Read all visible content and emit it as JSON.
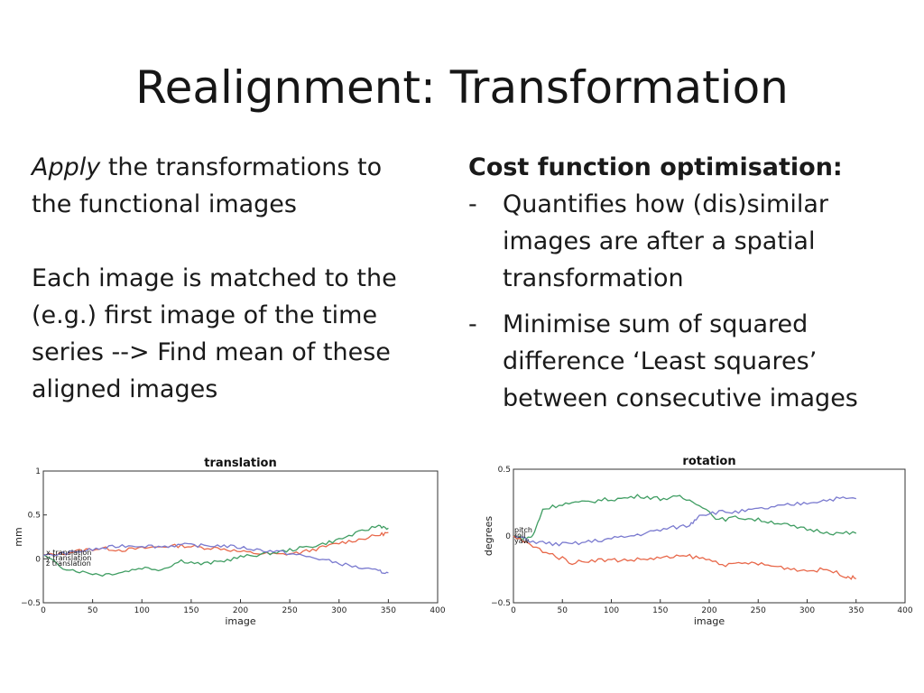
{
  "slide": {
    "title": "Realignment: Transformation"
  },
  "left": {
    "p1_em": "Apply",
    "p1_rest_line1": " the transformations to",
    "p1_line2": "the functional images",
    "p2_lines": [
      "Each image is matched to the",
      "(e.g.) first image of the time",
      "series --> Find mean of these",
      "aligned images"
    ]
  },
  "right": {
    "heading": "Cost function optimisation:",
    "bullets": [
      {
        "dash": "-",
        "lines": [
          "Quantifies how (dis)similar",
          "images are after a spatial",
          "transformation"
        ]
      },
      {
        "dash": "-",
        "lines": [
          "Minimise sum of squared",
          "difference ‘Least squares’",
          "between consecutive images"
        ]
      }
    ]
  },
  "colors": {
    "x": "#e8684a",
    "y": "#3f9d62",
    "z": "#7a7acf"
  },
  "chart_data": [
    {
      "type": "line",
      "title": "translation",
      "xlabel": "image",
      "ylabel": "mm",
      "xlim": [
        0,
        400
      ],
      "ylim": [
        -0.5,
        1
      ],
      "xticks": [
        0,
        50,
        100,
        150,
        200,
        250,
        300,
        350,
        400
      ],
      "yticks": [
        -0.5,
        0,
        0.5,
        1
      ],
      "yticklabels": [
        "−0.5",
        "0",
        "0.5",
        "1"
      ],
      "grid": false,
      "legend": {
        "placement": "left",
        "entries": [
          "x translation",
          "y translation",
          "z translation"
        ]
      },
      "series": [
        {
          "color": "#e8684a",
          "x": [
            0,
            20,
            40,
            60,
            80,
            100,
            120,
            140,
            160,
            180,
            200,
            220,
            240,
            260,
            280,
            300,
            320,
            340,
            350
          ],
          "y": [
            0.04,
            0.06,
            0.1,
            0.12,
            0.1,
            0.12,
            0.14,
            0.15,
            0.13,
            0.12,
            0.08,
            0.06,
            0.05,
            0.07,
            0.12,
            0.18,
            0.22,
            0.27,
            0.3
          ]
        },
        {
          "color": "#3f9d62",
          "x": [
            0,
            20,
            40,
            60,
            80,
            100,
            120,
            140,
            160,
            180,
            200,
            220,
            240,
            260,
            280,
            300,
            320,
            340,
            350
          ],
          "y": [
            0.04,
            -0.1,
            -0.15,
            -0.18,
            -0.15,
            -0.1,
            -0.12,
            -0.02,
            -0.06,
            -0.03,
            0.02,
            0.05,
            0.08,
            0.12,
            0.16,
            0.22,
            0.3,
            0.38,
            0.35
          ]
        },
        {
          "color": "#7a7acf",
          "x": [
            0,
            20,
            40,
            60,
            80,
            100,
            120,
            140,
            160,
            180,
            200,
            220,
            240,
            260,
            280,
            300,
            320,
            340,
            350
          ],
          "y": [
            0.03,
            0.06,
            0.09,
            0.12,
            0.15,
            0.15,
            0.14,
            0.16,
            0.15,
            0.15,
            0.13,
            0.1,
            0.08,
            0.04,
            0.0,
            -0.05,
            -0.1,
            -0.14,
            -0.16
          ]
        }
      ]
    },
    {
      "type": "line",
      "title": "rotation",
      "xlabel": "image",
      "ylabel": "degrees",
      "xlim": [
        0,
        400
      ],
      "ylim": [
        -0.5,
        0.5
      ],
      "xticks": [
        0,
        50,
        100,
        150,
        200,
        250,
        300,
        350,
        400
      ],
      "yticks": [
        -0.5,
        0,
        0.5
      ],
      "yticklabels": [
        "−0.5",
        "0",
        "0.5"
      ],
      "grid": false,
      "legend": {
        "placement": "left",
        "entries": [
          "pitch",
          "roll",
          "yaw"
        ]
      },
      "series": [
        {
          "color": "#3f9d62",
          "x": [
            0,
            10,
            20,
            30,
            50,
            70,
            90,
            110,
            130,
            150,
            170,
            190,
            210,
            230,
            250,
            270,
            290,
            310,
            330,
            350
          ],
          "y": [
            0.0,
            -0.02,
            0.0,
            0.2,
            0.24,
            0.25,
            0.27,
            0.28,
            0.3,
            0.28,
            0.29,
            0.24,
            0.12,
            0.14,
            0.12,
            0.1,
            0.06,
            0.04,
            0.02,
            0.02
          ]
        },
        {
          "color": "#7a7acf",
          "x": [
            0,
            20,
            40,
            60,
            80,
            100,
            120,
            140,
            160,
            180,
            190,
            210,
            230,
            250,
            270,
            290,
            310,
            330,
            350
          ],
          "y": [
            0.0,
            -0.04,
            -0.06,
            -0.06,
            -0.04,
            -0.02,
            0.0,
            0.03,
            0.06,
            0.08,
            0.16,
            0.18,
            0.18,
            0.2,
            0.22,
            0.24,
            0.26,
            0.28,
            0.28
          ]
        },
        {
          "color": "#e8684a",
          "x": [
            0,
            20,
            40,
            60,
            80,
            100,
            120,
            140,
            160,
            180,
            200,
            220,
            240,
            260,
            280,
            300,
            320,
            340,
            350
          ],
          "y": [
            0.0,
            -0.08,
            -0.14,
            -0.2,
            -0.18,
            -0.18,
            -0.18,
            -0.17,
            -0.16,
            -0.15,
            -0.18,
            -0.22,
            -0.2,
            -0.22,
            -0.24,
            -0.26,
            -0.25,
            -0.3,
            -0.32
          ]
        }
      ]
    }
  ]
}
